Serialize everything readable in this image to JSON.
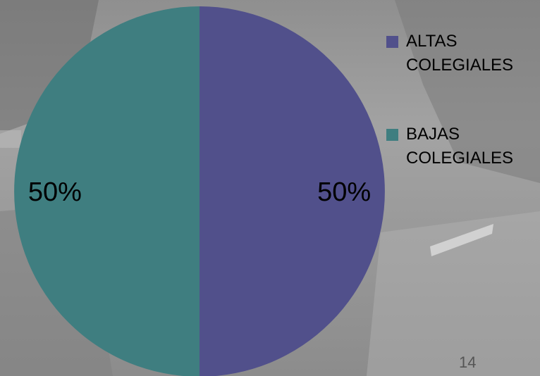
{
  "slide": {
    "background": "#9a9a9a",
    "page_number": "14"
  },
  "chart_data": {
    "type": "pie",
    "title": "",
    "categories": [
      "ALTAS COLEGIALES",
      "BAJAS COLEGIALES"
    ],
    "values": [
      50,
      50
    ],
    "labels": [
      "50%",
      "50%"
    ],
    "colors": [
      "#51508b",
      "#3f7e80"
    ],
    "legend_position": "right",
    "grid": false
  },
  "legend": {
    "items": [
      {
        "label": "ALTAS COLEGIALES",
        "color": "#51508b"
      },
      {
        "label": "BAJAS COLEGIALES",
        "color": "#3f7e80"
      }
    ]
  }
}
